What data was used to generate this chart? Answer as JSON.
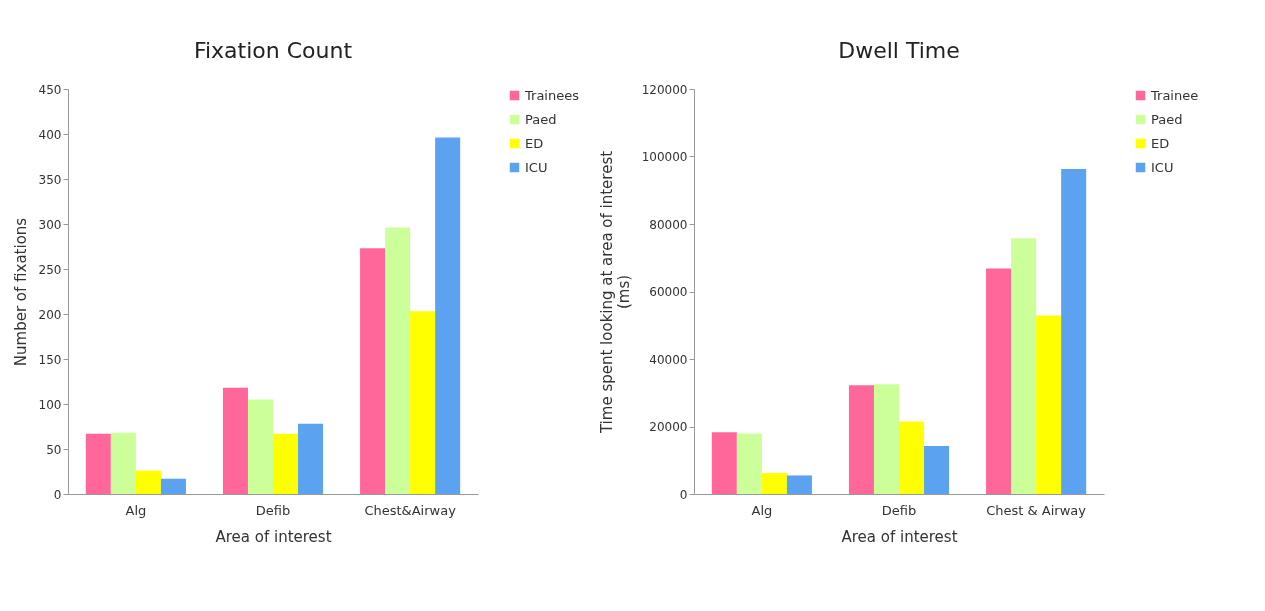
{
  "chart_data": [
    {
      "type": "bar",
      "title": "Fixation Count",
      "xlabel": "Area of interest",
      "ylabel": "Number of fixations",
      "categories": [
        "Alg",
        "Defib",
        "Chest&Airway"
      ],
      "ylim": [
        0,
        450
      ],
      "yticks": [
        0,
        50,
        100,
        150,
        200,
        250,
        300,
        350,
        400,
        450
      ],
      "grid": false,
      "legend": "right",
      "series": [
        {
          "name": "Trainees",
          "color": "#ff6699",
          "values": [
            67,
            118,
            273
          ]
        },
        {
          "name": "Paed",
          "color": "#ccff99",
          "values": [
            68,
            105,
            296
          ]
        },
        {
          "name": "ED",
          "color": "#ffff00",
          "values": [
            26,
            67,
            203
          ]
        },
        {
          "name": "ICU",
          "color": "#5ba3f0",
          "values": [
            17,
            78,
            396
          ]
        }
      ]
    },
    {
      "type": "bar",
      "title": "Dwell Time",
      "xlabel": "Area of interest",
      "ylabel": "Time spent looking at area of interest (ms)",
      "categories": [
        "Alg",
        "Defib",
        "Chest & Airway"
      ],
      "ylim": [
        0,
        120000
      ],
      "yticks": [
        0,
        20000,
        40000,
        60000,
        80000,
        100000,
        120000
      ],
      "grid": false,
      "legend": "right",
      "series": [
        {
          "name": "Trainee",
          "color": "#ff6699",
          "values": [
            18300,
            32200,
            66800
          ]
        },
        {
          "name": "Paed",
          "color": "#ccff99",
          "values": [
            17900,
            32500,
            75800
          ]
        },
        {
          "name": "ED",
          "color": "#ffff00",
          "values": [
            6200,
            21500,
            52900
          ]
        },
        {
          "name": "ICU",
          "color": "#5ba3f0",
          "values": [
            5500,
            14200,
            96300
          ]
        }
      ]
    }
  ]
}
